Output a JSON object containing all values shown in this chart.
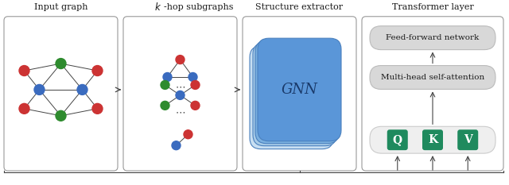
{
  "title_input": "Input graph",
  "title_khop": "k-hop subgraphs",
  "title_struct": "Structure extractor",
  "title_transformer": "Transformer layer",
  "gnn_label": "GNN",
  "ffn_label": "Feed-forward network",
  "mha_label": "Multi-head self-attention",
  "q_label": "Q",
  "k_label": "K",
  "v_label": "V",
  "bg_color": "#ffffff",
  "node_blue": "#3a6bbf",
  "node_red": "#cc3333",
  "node_green": "#2e8b2e",
  "arrow_color": "#444444",
  "gnn_colors": [
    "#a8cce8",
    "#7ab0e0",
    "#5a96d8"
  ],
  "gray_box_color": "#d8d8d8",
  "green_box_color": "#1f8a5e",
  "dark_text": "#1a1a1a",
  "panel_edge": "#999999",
  "gnn_text_color": "#1a3a6a",
  "gnn_edge_color": "#4a80be"
}
